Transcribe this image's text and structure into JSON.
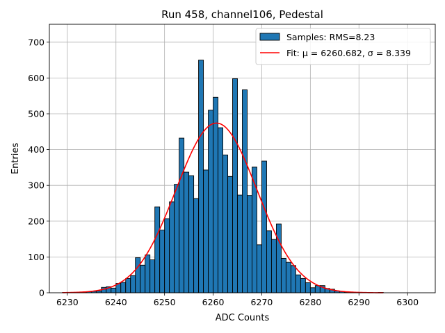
{
  "chart_data": {
    "type": "bar",
    "title": "Run 458, channel106, Pedestal",
    "xlabel": "ADC Counts",
    "ylabel": "Entries",
    "xlim": [
      6226.3,
      6305.7
    ],
    "ylim": [
      0,
      750
    ],
    "xticks": [
      6230,
      6240,
      6250,
      6260,
      6270,
      6280,
      6290,
      6300
    ],
    "yticks": [
      0,
      100,
      200,
      300,
      400,
      500,
      600,
      700
    ],
    "grid": true,
    "legend_position": "top-right",
    "bin_width": 1,
    "histogram": {
      "name": "Samples: RMS=8.23",
      "color": "#1f77b4",
      "edge_color": "#000000",
      "bins": [
        6229,
        6230,
        6231,
        6232,
        6233,
        6234,
        6235,
        6236,
        6237,
        6238,
        6239,
        6240,
        6241,
        6242,
        6243,
        6244,
        6245,
        6246,
        6247,
        6248,
        6249,
        6250,
        6251,
        6252,
        6253,
        6254,
        6255,
        6256,
        6257,
        6258,
        6259,
        6260,
        6261,
        6262,
        6263,
        6264,
        6265,
        6266,
        6267,
        6268,
        6269,
        6270,
        6271,
        6272,
        6273,
        6274,
        6275,
        6276,
        6277,
        6278,
        6279,
        6280,
        6281,
        6282,
        6283,
        6284,
        6285,
        6286,
        6287,
        6288,
        6289,
        6290,
        6291,
        6292,
        6293,
        6294
      ],
      "values": [
        1,
        1,
        1,
        2,
        2,
        3,
        4,
        5,
        15,
        17,
        13,
        26,
        29,
        40,
        48,
        98,
        77,
        106,
        92,
        240,
        175,
        207,
        254,
        303,
        432,
        337,
        327,
        263,
        650,
        343,
        510,
        546,
        461,
        385,
        325,
        598,
        273,
        567,
        272,
        351,
        134,
        368,
        173,
        149,
        192,
        96,
        85,
        76,
        50,
        40,
        28,
        14,
        20,
        20,
        12,
        10,
        5,
        4,
        2,
        2,
        1,
        1,
        0,
        0,
        0,
        1
      ]
    },
    "fit": {
      "name": "Fit: μ = 6260.682, σ = 8.339",
      "color": "#ff0000",
      "mu": 6260.682,
      "sigma": 8.339,
      "amplitude": 474,
      "x_range": [
        6229,
        6295
      ]
    }
  }
}
